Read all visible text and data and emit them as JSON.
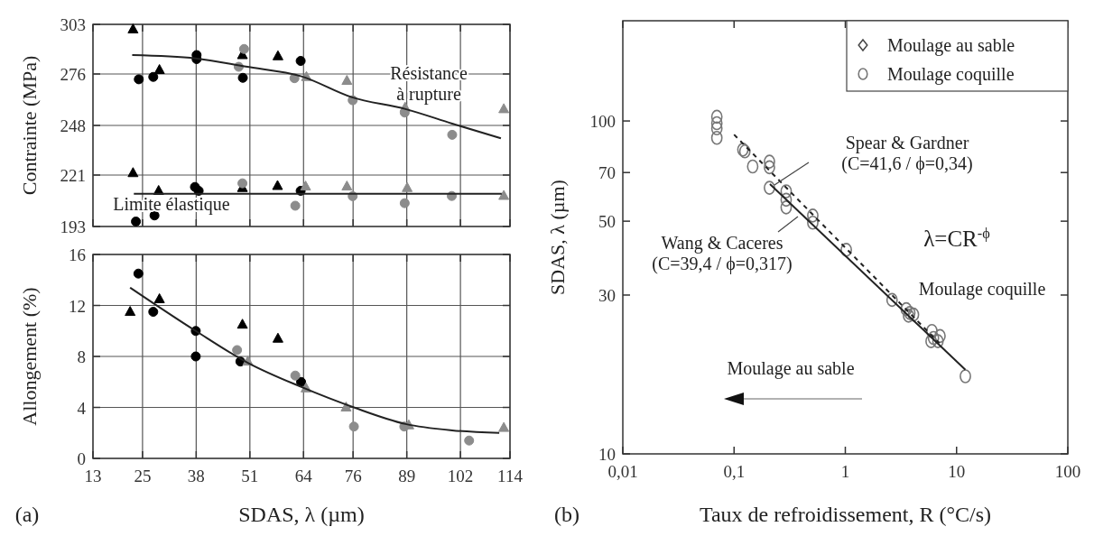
{
  "chart_data": [
    {
      "type": "scatter",
      "ylabel": "Contrainte (MPa)",
      "xlim": [
        13,
        114
      ],
      "xticks": [
        13,
        25,
        38,
        51,
        64,
        76,
        89,
        102,
        114
      ],
      "ylim": [
        193,
        303
      ],
      "yticks": [
        193,
        221,
        248,
        276,
        303
      ],
      "grid": true,
      "tick_labels": "y",
      "annotations": [
        "Résistance\nà rupture",
        "Limite élastique"
      ],
      "series": [
        {
          "color": "#000000",
          "marker": "triangle",
          "x": [
            22.7,
            29.1,
            49.2,
            57.8,
            22.7,
            28.9,
            49.2,
            57.7
          ],
          "values": [
            300.3,
            278.2,
            286.3,
            285.7,
            222.1,
            212.4,
            214,
            215.1
          ]
        },
        {
          "color": "#000000",
          "marker": "circle",
          "x": [
            24.1,
            27.6,
            38.1,
            38.1,
            49.3,
            63.3,
            23.4,
            27.9,
            37.7,
            38.6,
            49.2,
            63.3
          ],
          "values": [
            273.1,
            274.4,
            286.3,
            284.1,
            273.9,
            283.1,
            195.7,
            199,
            214.5,
            212.4,
            null,
            212.4
          ]
        },
        {
          "color": "#8c8c8c",
          "marker": "circle",
          "x": [
            48.3,
            49.6,
            61.8,
            75.9,
            88.5,
            100,
            49.2,
            62,
            75.9,
            88.5,
            99.9
          ],
          "values": [
            279.9,
            289.6,
            273.7,
            261.7,
            255,
            242.9,
            216.5,
            204.3,
            209.5,
            205.7,
            209.6
          ]
        },
        {
          "color": "#8c8c8c",
          "marker": "triangle",
          "x": [
            64.7,
            74.5,
            88.6,
            112.5,
            64.5,
            74.5,
            89.1,
            112.5
          ],
          "values": [
            274.4,
            272.3,
            257.7,
            256.9,
            214.8,
            214.8,
            214,
            209.7
          ]
        },
        {
          "type": "line",
          "color": "#222222",
          "line_style": "solid",
          "x": [
            22.5,
            37.9,
            50,
            63.5,
            75.6,
            88.7,
            100,
            111.8
          ],
          "values": [
            286.3,
            284.5,
            280,
            274.7,
            263.4,
            256.9,
            249,
            241
          ]
        },
        {
          "type": "line",
          "color": "#222222",
          "line_style": "solid",
          "x": [
            22.9,
            112
          ],
          "values": [
            210.8,
            210.8
          ]
        }
      ]
    },
    {
      "type": "scatter",
      "ylabel": "Allongement (%)",
      "xlabel": "SDAS, λ (µm)",
      "xlim": [
        13,
        114
      ],
      "xticks": [
        13,
        25,
        38,
        51,
        64,
        76,
        89,
        102,
        114
      ],
      "ylim": [
        0,
        16
      ],
      "yticks": [
        0,
        4,
        8,
        12,
        16
      ],
      "grid": true,
      "annotations": [
        "(a)"
      ],
      "series": [
        {
          "color": "#000000",
          "marker": "triangle",
          "x": [
            22,
            29.1,
            49.2,
            57.8
          ],
          "values": [
            11.5,
            12.5,
            10.5,
            9.4
          ]
        },
        {
          "color": "#000000",
          "marker": "circle",
          "x": [
            24,
            27.6,
            37.9,
            37.9,
            48.7,
            63.4
          ],
          "values": [
            14.5,
            11.5,
            10,
            8,
            7.6,
            6
          ]
        },
        {
          "color": "#8c8c8c",
          "marker": "circle",
          "x": [
            47.9,
            62,
            76.2,
            88.4,
            104.1
          ],
          "values": [
            8.5,
            6.5,
            2.5,
            2.5,
            1.4
          ]
        },
        {
          "color": "#8c8c8c",
          "marker": "triangle",
          "x": [
            50.5,
            64.6,
            74.3,
            89.5,
            112.5
          ],
          "values": [
            7.6,
            5.5,
            4,
            2.6,
            2.4
          ]
        },
        {
          "type": "line",
          "color": "#222222",
          "line_style": "solid",
          "x": [
            22,
            37.9,
            50.5,
            63.5,
            76.2,
            88.7,
            100,
            111.4
          ],
          "values": [
            13.4,
            10,
            7.5,
            5.6,
            4,
            2.7,
            2.2,
            2
          ]
        }
      ]
    },
    {
      "type": "scatter",
      "xlabel": "Taux de refroidissement, R (°C/s)",
      "ylabel": "SDAS, λ (µm)",
      "log": "xy",
      "xlim": [
        0.01,
        100
      ],
      "xticks": [
        {
          "value": 0.01,
          "label": "0,01"
        },
        {
          "value": 0.1,
          "label": "0,1"
        },
        1,
        10,
        100
      ],
      "ylim": [
        10,
        200
      ],
      "yticks": [
        10,
        30,
        50,
        70,
        100
      ],
      "grid": false,
      "legend": "top right",
      "annotations": [
        "Spear & Gardner\n(C=41,6 / ϕ=0,34)",
        "Wang & Caceres\n(C=39,4 / ϕ=0,317)",
        "λ=CR$^{-ϕ}$",
        "Moulage coquille",
        "Moulage au sable",
        "(b)"
      ],
      "series": [
        {
          "name": "Moulage au sable",
          "color": "#444444",
          "marker": "diamond"
        },
        {
          "name": "Moulage coquille",
          "color": "#777777",
          "marker": "circle",
          "x": [
            0.07,
            0.07,
            0.07,
            0.07,
            0.12,
            0.125,
            0.147,
            0.208,
            0.208,
            0.208,
            0.294,
            0.294,
            0.294,
            0.51,
            0.51,
            1.02,
            2.63,
            3.53,
            3.8,
            3.7,
            4.1,
            6,
            6.2,
            6.8,
            5.9,
            7.1,
            12
          ],
          "values": [
            103,
            98.5,
            95,
            89,
            82,
            81,
            73,
            75.5,
            72.6,
            63,
            61.5,
            58,
            55,
            52,
            49.5,
            41,
            29,
            27.2,
            26.5,
            26,
            26.2,
            23.4,
            22.3,
            21.8,
            21.8,
            22.6,
            17.1
          ]
        },
        {
          "type": "line",
          "color": "#222222",
          "line_style": "dashed",
          "x": [
            0.1,
            7
          ],
          "values": [
            91,
            21.5
          ]
        },
        {
          "type": "line",
          "color": "#222222",
          "line_style": "solid",
          "x": [
            0.21,
            12
          ],
          "values": [
            64.6,
            17.9
          ]
        }
      ]
    }
  ]
}
